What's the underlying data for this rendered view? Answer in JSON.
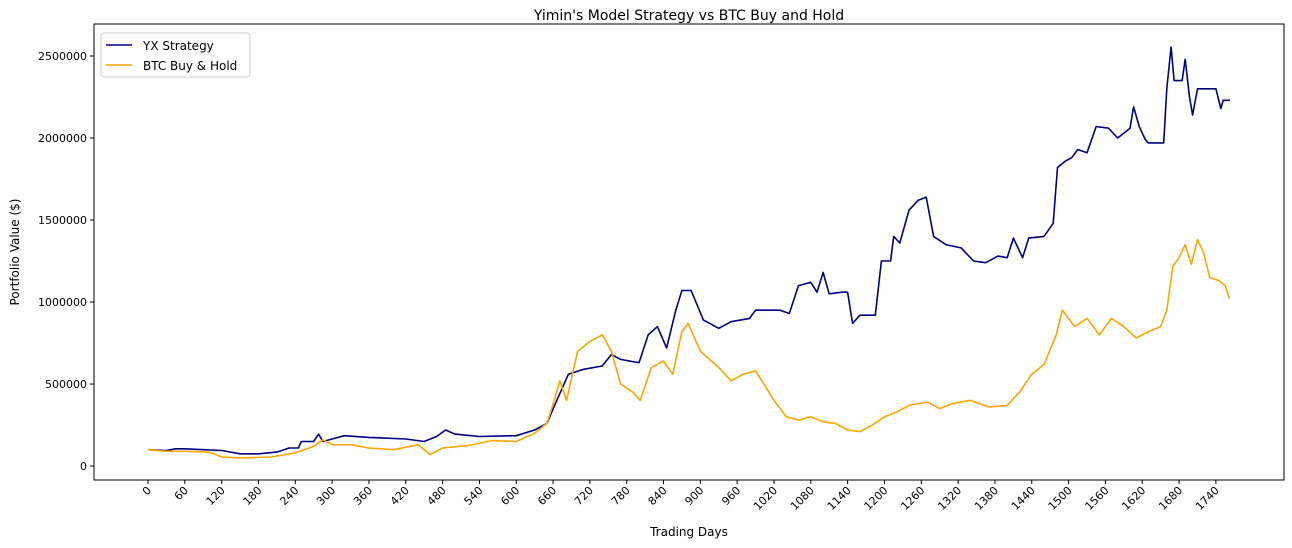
{
  "chart_data": {
    "type": "line",
    "title": "Yimin's Model Strategy vs BTC Buy and Hold",
    "xlabel": "Trading Days",
    "ylabel": "Portfolio Value ($)",
    "xlim": [
      -88,
      1851
    ],
    "ylim": [
      -85000,
      2695000
    ],
    "xticks": [
      0,
      60,
      120,
      180,
      240,
      300,
      360,
      420,
      480,
      540,
      600,
      660,
      720,
      780,
      840,
      900,
      960,
      1020,
      1080,
      1140,
      1200,
      1260,
      1320,
      1380,
      1440,
      1500,
      1560,
      1620,
      1680,
      1740
    ],
    "yticks": [
      0,
      500000,
      1000000,
      1500000,
      2000000,
      2500000
    ],
    "grid": false,
    "legend_position": "top-left",
    "series": [
      {
        "name": "YX Strategy",
        "color": "#000080",
        "points": [
          [
            0,
            100000
          ],
          [
            30,
            95000
          ],
          [
            45,
            105000
          ],
          [
            60,
            105000
          ],
          [
            120,
            95000
          ],
          [
            150,
            75000
          ],
          [
            180,
            75000
          ],
          [
            210,
            85000
          ],
          [
            230,
            110000
          ],
          [
            245,
            110000
          ],
          [
            250,
            150000
          ],
          [
            270,
            150000
          ],
          [
            278,
            195000
          ],
          [
            285,
            150000
          ],
          [
            300,
            165000
          ],
          [
            320,
            185000
          ],
          [
            360,
            175000
          ],
          [
            420,
            165000
          ],
          [
            450,
            150000
          ],
          [
            470,
            180000
          ],
          [
            485,
            220000
          ],
          [
            500,
            195000
          ],
          [
            540,
            180000
          ],
          [
            600,
            185000
          ],
          [
            630,
            220000
          ],
          [
            650,
            260000
          ],
          [
            665,
            390000
          ],
          [
            685,
            560000
          ],
          [
            710,
            590000
          ],
          [
            740,
            610000
          ],
          [
            755,
            680000
          ],
          [
            770,
            650000
          ],
          [
            800,
            630000
          ],
          [
            815,
            800000
          ],
          [
            830,
            850000
          ],
          [
            845,
            720000
          ],
          [
            860,
            950000
          ],
          [
            870,
            1070000
          ],
          [
            885,
            1070000
          ],
          [
            895,
            980000
          ],
          [
            905,
            890000
          ],
          [
            930,
            840000
          ],
          [
            950,
            880000
          ],
          [
            980,
            900000
          ],
          [
            990,
            950000
          ],
          [
            1030,
            950000
          ],
          [
            1045,
            930000
          ],
          [
            1060,
            1100000
          ],
          [
            1080,
            1120000
          ],
          [
            1090,
            1060000
          ],
          [
            1100,
            1180000
          ],
          [
            1110,
            1050000
          ],
          [
            1130,
            1060000
          ],
          [
            1140,
            1060000
          ],
          [
            1148,
            870000
          ],
          [
            1160,
            920000
          ],
          [
            1185,
            920000
          ],
          [
            1195,
            1250000
          ],
          [
            1210,
            1250000
          ],
          [
            1215,
            1400000
          ],
          [
            1225,
            1360000
          ],
          [
            1240,
            1560000
          ],
          [
            1255,
            1620000
          ],
          [
            1268,
            1640000
          ],
          [
            1280,
            1400000
          ],
          [
            1300,
            1350000
          ],
          [
            1325,
            1330000
          ],
          [
            1345,
            1250000
          ],
          [
            1365,
            1240000
          ],
          [
            1385,
            1280000
          ],
          [
            1400,
            1270000
          ],
          [
            1410,
            1390000
          ],
          [
            1425,
            1270000
          ],
          [
            1435,
            1390000
          ],
          [
            1460,
            1400000
          ],
          [
            1475,
            1480000
          ],
          [
            1482,
            1820000
          ],
          [
            1495,
            1860000
          ],
          [
            1505,
            1880000
          ],
          [
            1515,
            1930000
          ],
          [
            1530,
            1910000
          ],
          [
            1545,
            2070000
          ],
          [
            1565,
            2060000
          ],
          [
            1580,
            2000000
          ],
          [
            1600,
            2060000
          ],
          [
            1606,
            2190000
          ],
          [
            1615,
            2070000
          ],
          [
            1625,
            1990000
          ],
          [
            1630,
            1970000
          ],
          [
            1655,
            1970000
          ],
          [
            1660,
            2300000
          ],
          [
            1667,
            2555000
          ],
          [
            1672,
            2350000
          ],
          [
            1685,
            2350000
          ],
          [
            1690,
            2480000
          ],
          [
            1697,
            2250000
          ],
          [
            1702,
            2140000
          ],
          [
            1710,
            2300000
          ],
          [
            1740,
            2300000
          ],
          [
            1748,
            2180000
          ],
          [
            1752,
            2230000
          ],
          [
            1763,
            2230000
          ]
        ]
      },
      {
        "name": "BTC Buy & Hold",
        "color": "#FFA500",
        "points": [
          [
            0,
            100000
          ],
          [
            30,
            90000
          ],
          [
            60,
            90000
          ],
          [
            100,
            85000
          ],
          [
            120,
            55000
          ],
          [
            150,
            50000
          ],
          [
            200,
            55000
          ],
          [
            240,
            80000
          ],
          [
            270,
            120000
          ],
          [
            285,
            160000
          ],
          [
            300,
            130000
          ],
          [
            330,
            130000
          ],
          [
            360,
            110000
          ],
          [
            400,
            100000
          ],
          [
            440,
            130000
          ],
          [
            460,
            70000
          ],
          [
            480,
            110000
          ],
          [
            520,
            125000
          ],
          [
            560,
            155000
          ],
          [
            600,
            150000
          ],
          [
            630,
            200000
          ],
          [
            650,
            260000
          ],
          [
            662,
            400000
          ],
          [
            671,
            520000
          ],
          [
            682,
            400000
          ],
          [
            700,
            700000
          ],
          [
            720,
            760000
          ],
          [
            740,
            800000
          ],
          [
            755,
            700000
          ],
          [
            770,
            500000
          ],
          [
            790,
            450000
          ],
          [
            802,
            400000
          ],
          [
            820,
            600000
          ],
          [
            840,
            640000
          ],
          [
            855,
            560000
          ],
          [
            870,
            820000
          ],
          [
            880,
            870000
          ],
          [
            900,
            700000
          ],
          [
            930,
            600000
          ],
          [
            950,
            520000
          ],
          [
            970,
            560000
          ],
          [
            990,
            580000
          ],
          [
            1010,
            460000
          ],
          [
            1020,
            400000
          ],
          [
            1040,
            300000
          ],
          [
            1060,
            280000
          ],
          [
            1080,
            300000
          ],
          [
            1100,
            270000
          ],
          [
            1120,
            260000
          ],
          [
            1140,
            220000
          ],
          [
            1160,
            210000
          ],
          [
            1180,
            250000
          ],
          [
            1200,
            300000
          ],
          [
            1220,
            330000
          ],
          [
            1240,
            370000
          ],
          [
            1270,
            390000
          ],
          [
            1290,
            350000
          ],
          [
            1310,
            380000
          ],
          [
            1340,
            400000
          ],
          [
            1370,
            360000
          ],
          [
            1400,
            370000
          ],
          [
            1420,
            450000
          ],
          [
            1440,
            560000
          ],
          [
            1460,
            620000
          ],
          [
            1480,
            800000
          ],
          [
            1490,
            950000
          ],
          [
            1510,
            850000
          ],
          [
            1530,
            900000
          ],
          [
            1550,
            800000
          ],
          [
            1570,
            900000
          ],
          [
            1590,
            850000
          ],
          [
            1610,
            780000
          ],
          [
            1630,
            820000
          ],
          [
            1650,
            850000
          ],
          [
            1660,
            950000
          ],
          [
            1670,
            1220000
          ],
          [
            1680,
            1270000
          ],
          [
            1690,
            1350000
          ],
          [
            1700,
            1230000
          ],
          [
            1710,
            1380000
          ],
          [
            1720,
            1300000
          ],
          [
            1730,
            1150000
          ],
          [
            1745,
            1130000
          ],
          [
            1755,
            1100000
          ],
          [
            1762,
            1020000
          ]
        ]
      }
    ]
  }
}
